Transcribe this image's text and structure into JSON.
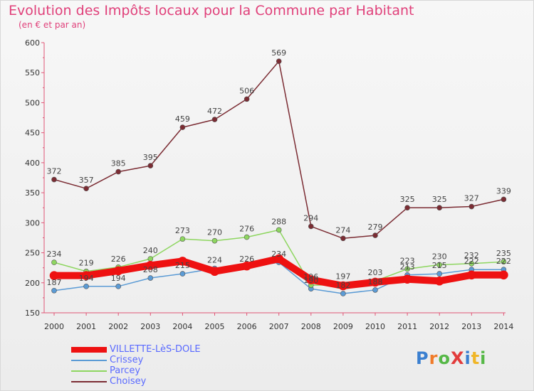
{
  "title": "Evolution des Impôts locaux pour la Commune par Habitant",
  "subtitle": "(en € et par an)",
  "logo": {
    "text": "ProXiti",
    "letters": [
      {
        "ch": "P",
        "color": "#3a7fd0"
      },
      {
        "ch": "r",
        "color": "#f07a28"
      },
      {
        "ch": "o",
        "color": "#56b847"
      },
      {
        "ch": "X",
        "color": "#e23b3b"
      },
      {
        "ch": "i",
        "color": "#3a7fd0"
      },
      {
        "ch": "t",
        "color": "#f0b628"
      },
      {
        "ch": "i",
        "color": "#56b847"
      }
    ]
  },
  "chart_data": {
    "type": "line",
    "title": "Evolution des Impôts locaux pour la Commune par Habitant",
    "ylabel": "(en € et par an)",
    "x": [
      "2000",
      "2001",
      "2002",
      "2003",
      "2004",
      "2005",
      "2006",
      "2007",
      "2008",
      "2009",
      "2010",
      "2011",
      "2012",
      "2013",
      "2014"
    ],
    "ylim": [
      150,
      600
    ],
    "yticks": [
      150,
      200,
      250,
      300,
      350,
      400,
      450,
      500,
      550,
      600
    ],
    "grid": false,
    "legend_position": "bottom-left",
    "series": [
      {
        "name": "VILLETTE-LèS-DOLE",
        "color": "#ee1111",
        "width": 10,
        "marker": 6,
        "labels": false,
        "values": [
          212,
          212,
          220,
          229,
          236,
          219,
          228,
          240,
          205,
          195,
          201,
          206,
          203,
          213,
          213
        ]
      },
      {
        "name": "Crissey",
        "color": "#5b9bd5",
        "width": 1.5,
        "marker": 3.5,
        "labels": true,
        "values": [
          187,
          194,
          194,
          208,
          215,
          224,
          226,
          234,
          190,
          182,
          188,
          213,
          215,
          222,
          222
        ]
      },
      {
        "name": "Parcey",
        "color": "#8ed660",
        "width": 1.5,
        "marker": 3.5,
        "labels": true,
        "values": [
          234,
          219,
          226,
          240,
          273,
          270,
          276,
          288,
          196,
          197,
          203,
          223,
          230,
          232,
          235
        ]
      },
      {
        "name": "Choisey",
        "color": "#7b2c33",
        "width": 1.5,
        "marker": 3.5,
        "labels": true,
        "values": [
          372,
          357,
          385,
          395,
          459,
          472,
          506,
          569,
          294,
          274,
          279,
          325,
          325,
          327,
          339
        ]
      }
    ]
  }
}
